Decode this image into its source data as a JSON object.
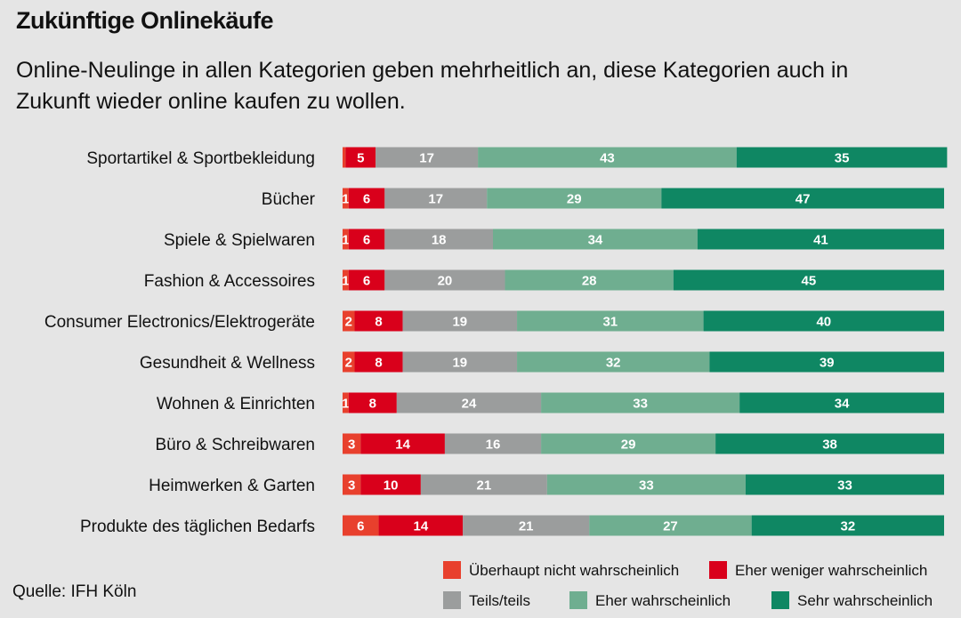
{
  "title": "Zukünftige Onlinekäufe",
  "subtitle": "Online-Neulinge in allen Kategorien geben mehrheitlich an, diese Kategorien auch in Zukunft wieder online kaufen zu wollen.",
  "source": "Quelle: IFH Köln",
  "chart_data": {
    "type": "bar",
    "orientation": "horizontal",
    "stacked": true,
    "xlim": [
      0,
      100
    ],
    "categories": [
      "Sportartikel & Sportbekleidung",
      "Bücher",
      "Spiele & Spielwaren",
      "Fashion & Accessoires",
      "Consumer Electronics/Elektrogeräte",
      "Gesundheit & Wellness",
      "Wohnen & Einrichten",
      "Büro & Schreibwaren",
      "Heimwerken & Garten",
      "Produkte des täglichen Bedarfs"
    ],
    "series": [
      {
        "name": "Überhaupt nicht wahrscheinlich",
        "color": "#e8402d",
        "values": [
          0.5,
          1,
          1,
          1,
          2,
          2,
          1,
          3,
          3,
          6
        ]
      },
      {
        "name": "Eher weniger wahrscheinlich",
        "color": "#d9001b",
        "values": [
          5,
          6,
          6,
          6,
          8,
          8,
          8,
          14,
          10,
          14
        ]
      },
      {
        "name": "Teils/teils",
        "color": "#9b9d9d",
        "values": [
          17,
          17,
          18,
          20,
          19,
          19,
          24,
          16,
          21,
          21
        ]
      },
      {
        "name": "Eher wahrscheinlich",
        "color": "#6fae90",
        "values": [
          43,
          29,
          34,
          28,
          31,
          32,
          33,
          29,
          33,
          27
        ]
      },
      {
        "name": "Sehr wahrscheinlich",
        "color": "#0f8763",
        "values": [
          35,
          47,
          41,
          45,
          40,
          39,
          34,
          38,
          33,
          32
        ]
      }
    ],
    "legend": "bottom-right",
    "grid": false
  }
}
